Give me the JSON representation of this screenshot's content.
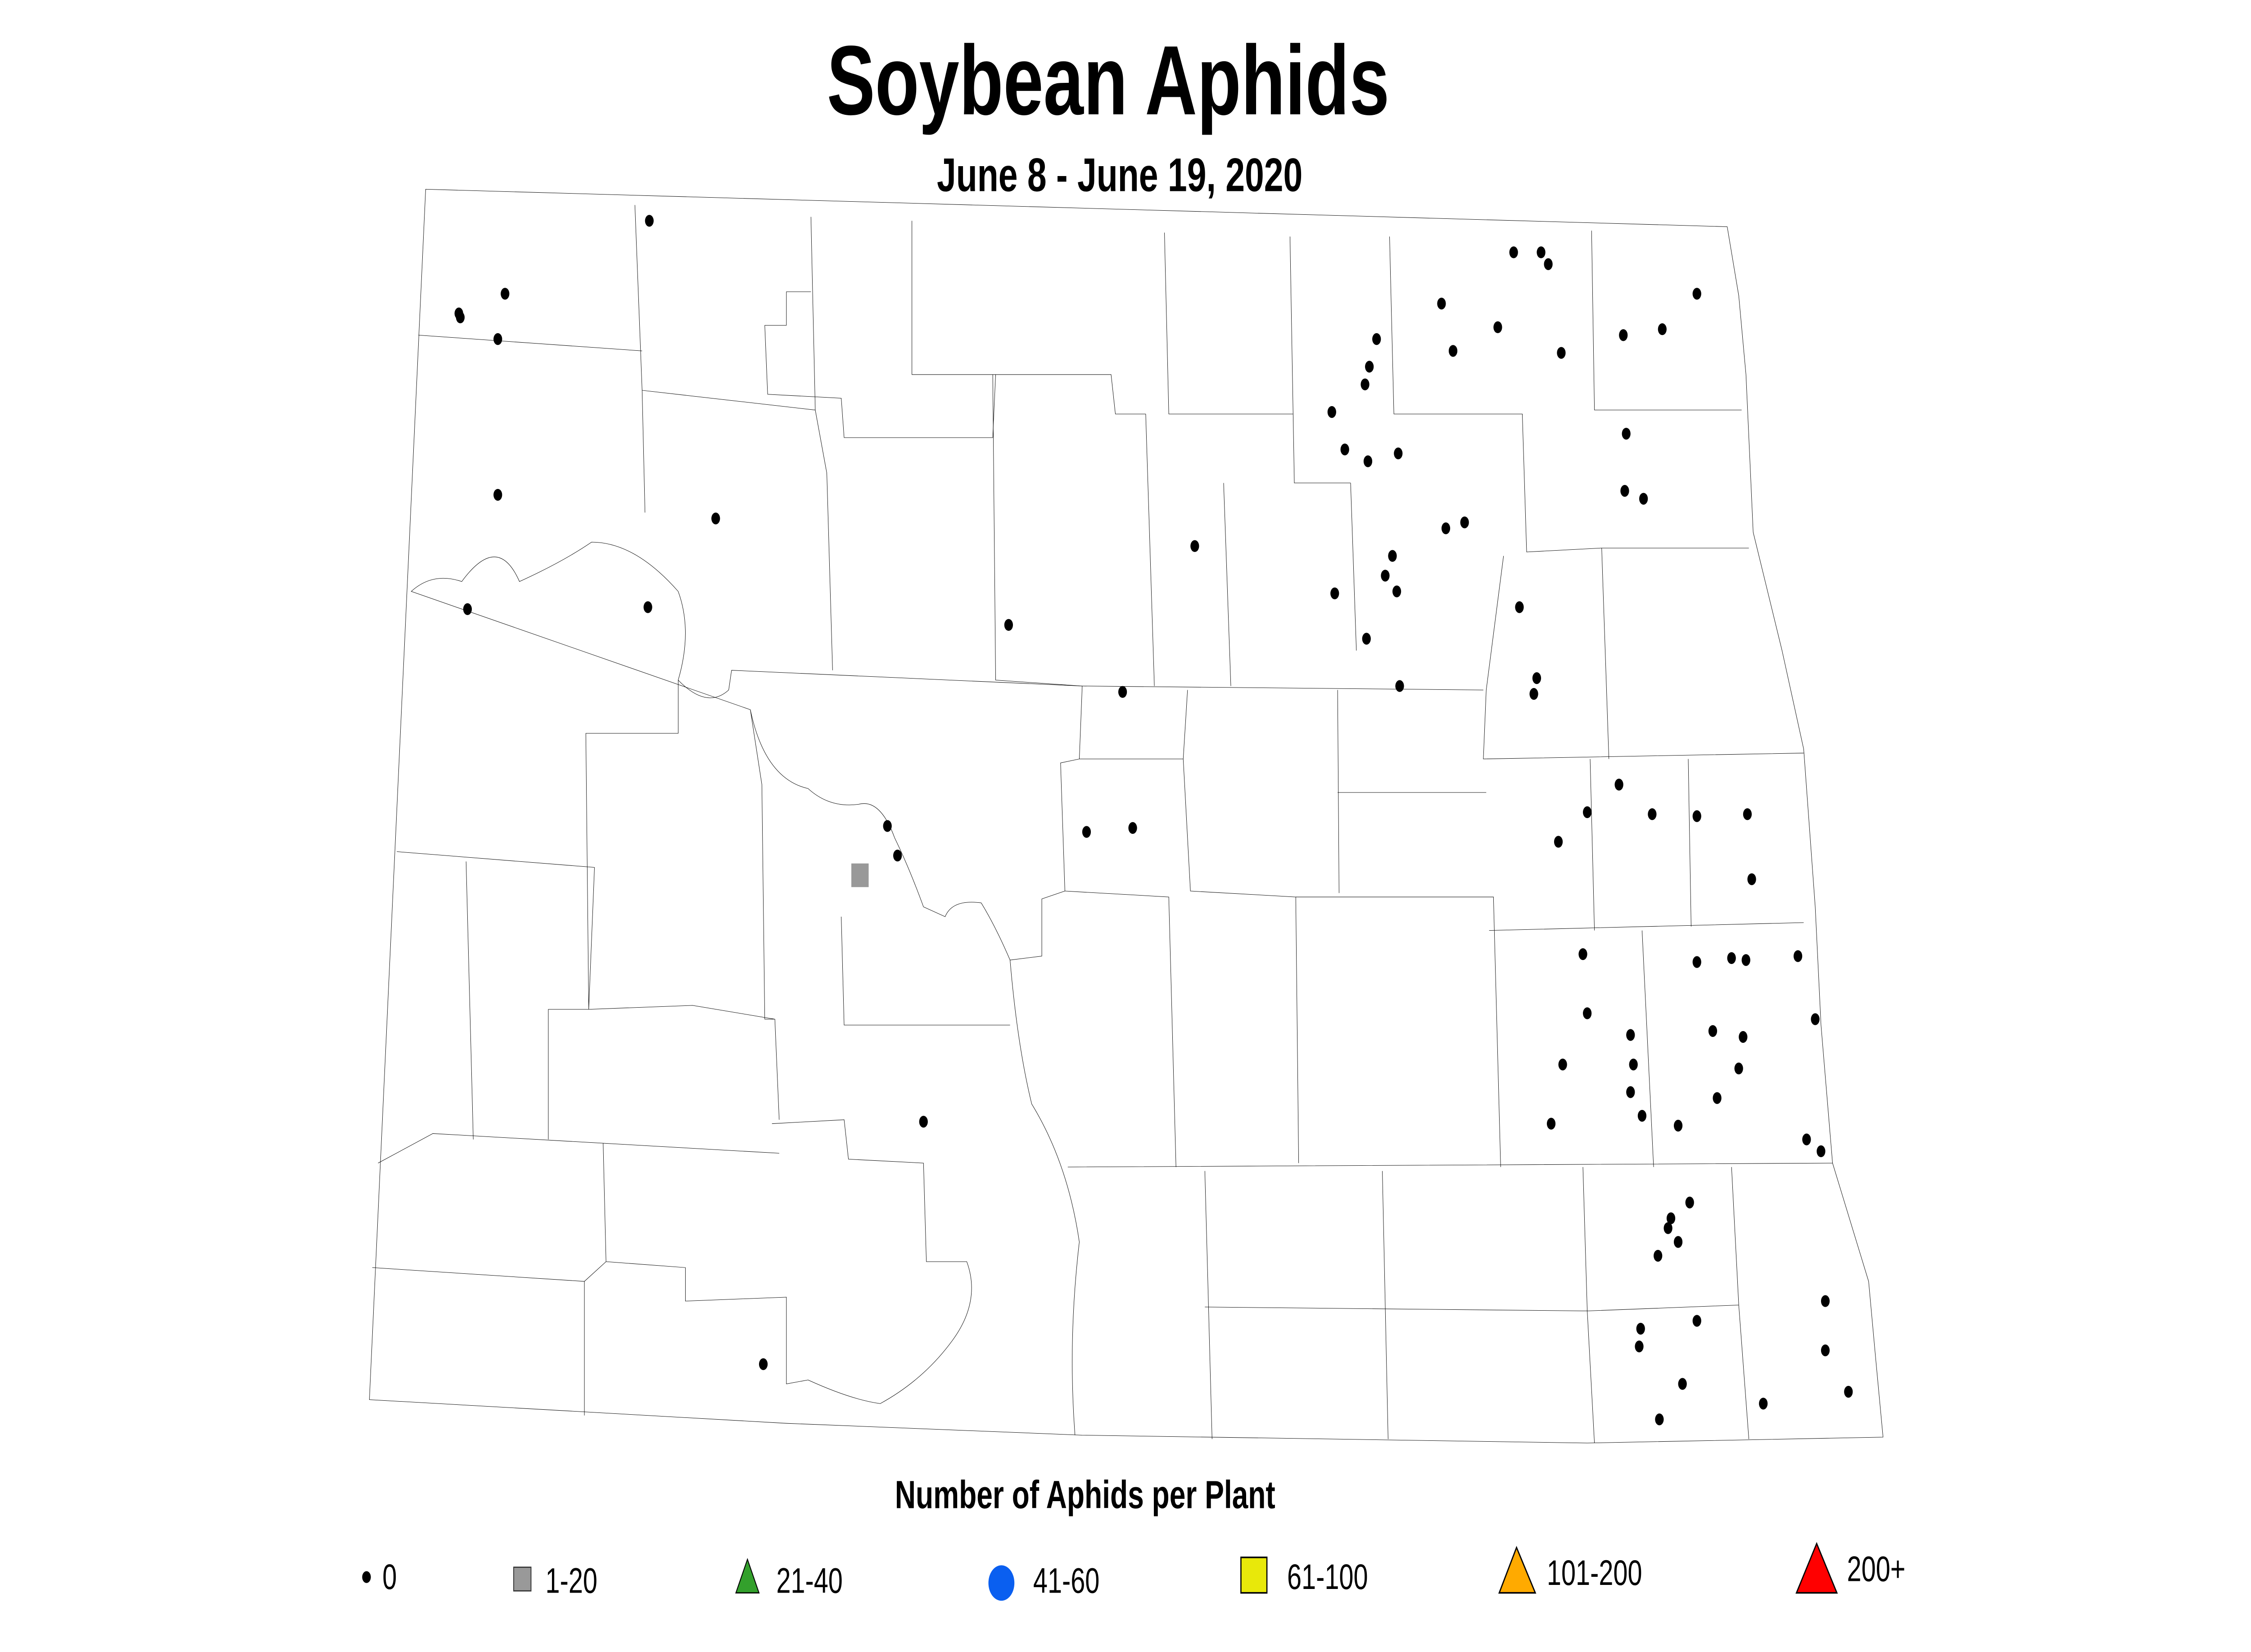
{
  "title": "Soybean Aphids",
  "subtitle": "June 8 - June 19, 2020",
  "legend": {
    "title": "Number of Aphids per Plant",
    "items": [
      {
        "label": "0",
        "shape": "dot",
        "color": "#000000"
      },
      {
        "label": "1-20",
        "shape": "square",
        "color": "#999999"
      },
      {
        "label": "21-40",
        "shape": "triangle",
        "color": "#33a02c"
      },
      {
        "label": "41-60",
        "shape": "circle",
        "color": "#0a5ff0"
      },
      {
        "label": "61-100",
        "shape": "square",
        "color": "#e8e80a"
      },
      {
        "label": "101-200",
        "shape": "triangle",
        "color": "#ffaa00"
      },
      {
        "label": "200+",
        "shape": "triangle",
        "color": "#ff0000"
      }
    ]
  },
  "observations": {
    "zero": [
      [
        450,
        112
      ],
      [
        318,
        159
      ],
      [
        319,
        161
      ],
      [
        350,
        149
      ],
      [
        345,
        172
      ],
      [
        345,
        251
      ],
      [
        496,
        263
      ],
      [
        324,
        309
      ],
      [
        449,
        308
      ],
      [
        699,
        317
      ],
      [
        778,
        351
      ],
      [
        753,
        422
      ],
      [
        785,
        420
      ],
      [
        615,
        419
      ],
      [
        622,
        434
      ],
      [
        640,
        569
      ],
      [
        529,
        692
      ],
      [
        828,
        277
      ],
      [
        954,
        172
      ],
      [
        949,
        186
      ],
      [
        946,
        195
      ],
      [
        923,
        209
      ],
      [
        932,
        228
      ],
      [
        948,
        234
      ],
      [
        969,
        230
      ],
      [
        999,
        154
      ],
      [
        1007,
        178
      ],
      [
        1038,
        166
      ],
      [
        1049,
        128
      ],
      [
        1068,
        128
      ],
      [
        1073,
        134
      ],
      [
        1082,
        179
      ],
      [
        1125,
        170
      ],
      [
        1152,
        167
      ],
      [
        1176,
        149
      ],
      [
        1127,
        220
      ],
      [
        1126,
        249
      ],
      [
        1139,
        253
      ],
      [
        1002,
        268
      ],
      [
        1015,
        265
      ],
      [
        965,
        282
      ],
      [
        960,
        292
      ],
      [
        968,
        300
      ],
      [
        925,
        301
      ],
      [
        947,
        324
      ],
      [
        970,
        348
      ],
      [
        1053,
        308
      ],
      [
        1065,
        344
      ],
      [
        1063,
        352
      ],
      [
        1122,
        398
      ],
      [
        1100,
        412
      ],
      [
        1145,
        413
      ],
      [
        1080,
        427
      ],
      [
        1176,
        414
      ],
      [
        1211,
        413
      ],
      [
        1214,
        446
      ],
      [
        1097,
        484
      ],
      [
        1176,
        488
      ],
      [
        1200,
        486
      ],
      [
        1210,
        487
      ],
      [
        1246,
        485
      ],
      [
        1258,
        517
      ],
      [
        1100,
        514
      ],
      [
        1130,
        525
      ],
      [
        1187,
        523
      ],
      [
        1208,
        526
      ],
      [
        1083,
        540
      ],
      [
        1132,
        540
      ],
      [
        1205,
        542
      ],
      [
        1130,
        554
      ],
      [
        1190,
        557
      ],
      [
        1138,
        566
      ],
      [
        1075,
        570
      ],
      [
        1163,
        571
      ],
      [
        1252,
        578
      ],
      [
        1262,
        584
      ],
      [
        1171,
        610
      ],
      [
        1158,
        618
      ],
      [
        1156,
        623
      ],
      [
        1163,
        630
      ],
      [
        1149,
        637
      ],
      [
        1137,
        674
      ],
      [
        1176,
        670
      ],
      [
        1136,
        683
      ],
      [
        1265,
        660
      ],
      [
        1265,
        685
      ],
      [
        1166,
        702
      ],
      [
        1222,
        712
      ],
      [
        1281,
        706
      ],
      [
        1150,
        720
      ]
    ],
    "range_1_20": [
      [
        596,
        444
      ]
    ]
  }
}
